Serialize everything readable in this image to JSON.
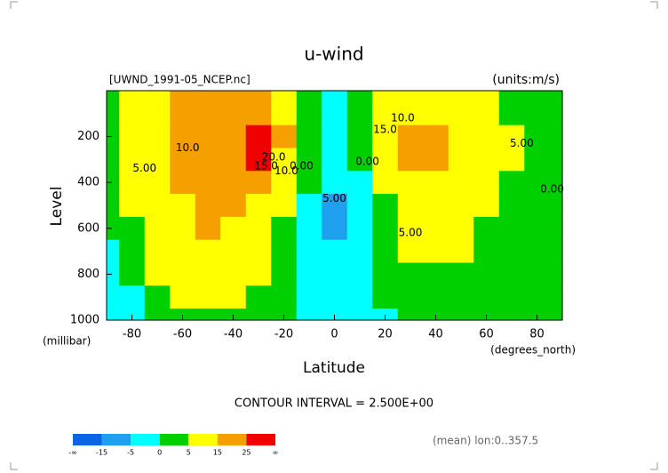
{
  "chart_data": {
    "type": "contour",
    "title": "u-wind",
    "subtitle": "[UWND_1991-05_NCEP.nc]",
    "units_label": "(units:m/s)",
    "y_label": "Level",
    "y_units": "(millibar)",
    "x_label": "Latitude",
    "x_units": "(degrees_north)",
    "contour_interval": "CONTOUR INTERVAL = 2.500E+00",
    "footnote": "(mean) lon:0..357.5",
    "xlim": [
      -90,
      90
    ],
    "ylim": [
      1000,
      0
    ],
    "xticks": [
      -80,
      -60,
      -40,
      -20,
      0,
      20,
      40,
      60,
      80
    ],
    "yticks": [
      200,
      400,
      600,
      800,
      1000
    ],
    "x": [
      -90,
      -80,
      -70,
      -60,
      -50,
      -40,
      -30,
      -20,
      -10,
      0,
      10,
      20,
      30,
      40,
      50,
      60,
      70,
      80,
      90
    ],
    "levels": [
      100,
      200,
      300,
      400,
      500,
      600,
      700,
      800,
      900,
      1000
    ],
    "z": [
      [
        2,
        5,
        10,
        17,
        22,
        20,
        15,
        7,
        2,
        -2,
        2,
        8,
        10,
        10,
        8,
        5,
        3,
        2,
        1
      ],
      [
        3,
        8,
        13,
        18,
        20,
        22,
        27,
        15,
        3,
        -3,
        3,
        12,
        20,
        18,
        13,
        8,
        5,
        3,
        2
      ],
      [
        3,
        7,
        12,
        17,
        20,
        20,
        25,
        12,
        2,
        -4,
        1,
        8,
        17,
        16,
        12,
        7,
        5,
        3,
        2
      ],
      [
        2,
        6,
        10,
        15,
        18,
        18,
        15,
        8,
        0,
        -5,
        -1,
        5,
        12,
        12,
        10,
        6,
        4,
        2,
        2
      ],
      [
        2,
        5,
        8,
        12,
        16,
        15,
        10,
        5,
        -1,
        -6,
        -2,
        3,
        9,
        10,
        8,
        5,
        3,
        2,
        1
      ],
      [
        1,
        4,
        7,
        10,
        15,
        12,
        8,
        4,
        -1,
        -6,
        -2,
        2,
        7,
        8,
        7,
        4,
        2,
        1,
        1
      ],
      [
        -2,
        2,
        6,
        9,
        12,
        10,
        6,
        3,
        -2,
        -5,
        -2,
        1,
        5,
        6,
        5,
        3,
        2,
        1,
        0
      ],
      [
        -3,
        0,
        5,
        8,
        9,
        8,
        5,
        2,
        -2,
        -4,
        -2,
        1,
        3,
        4,
        3,
        2,
        1,
        0,
        0
      ],
      [
        -3,
        -1,
        3,
        6,
        7,
        6,
        4,
        1,
        -3,
        -4,
        -2,
        0,
        2,
        3,
        2,
        1,
        1,
        0,
        0
      ],
      [
        -3,
        -2,
        1,
        3,
        4,
        3,
        2,
        0,
        -5,
        -3,
        -2,
        -1,
        1,
        1,
        1,
        0,
        0,
        0,
        0
      ]
    ],
    "contour_labels": [
      {
        "text": "10.0",
        "lat": -58,
        "level": 250
      },
      {
        "text": "5.00",
        "lat": -75,
        "level": 340
      },
      {
        "text": "20.0",
        "lat": -24,
        "level": 290
      },
      {
        "text": "15.0",
        "lat": -27,
        "level": 330
      },
      {
        "text": "10.0",
        "lat": -19,
        "level": 350
      },
      {
        "text": "0.00",
        "lat": -13,
        "level": 330
      },
      {
        "text": "5.00",
        "lat": 0,
        "level": 470
      },
      {
        "text": "0.00",
        "lat": 13,
        "level": 310
      },
      {
        "text": "10.0",
        "lat": 27,
        "level": 120
      },
      {
        "text": "15.0",
        "lat": 20,
        "level": 170
      },
      {
        "text": "5.00",
        "lat": 74,
        "level": 230
      },
      {
        "text": "5.00",
        "lat": 30,
        "level": 620
      },
      {
        "text": "0.00",
        "lat": 86,
        "level": 430
      }
    ],
    "colorbar": {
      "bounds": [
        "-∞",
        -15,
        -5,
        0,
        5,
        15,
        25,
        "∞"
      ],
      "colors": [
        "#0a64e6",
        "#1ea0ee",
        "#00ffff",
        "#00d000",
        "#ffff00",
        "#f5a000",
        "#f00000"
      ]
    }
  }
}
